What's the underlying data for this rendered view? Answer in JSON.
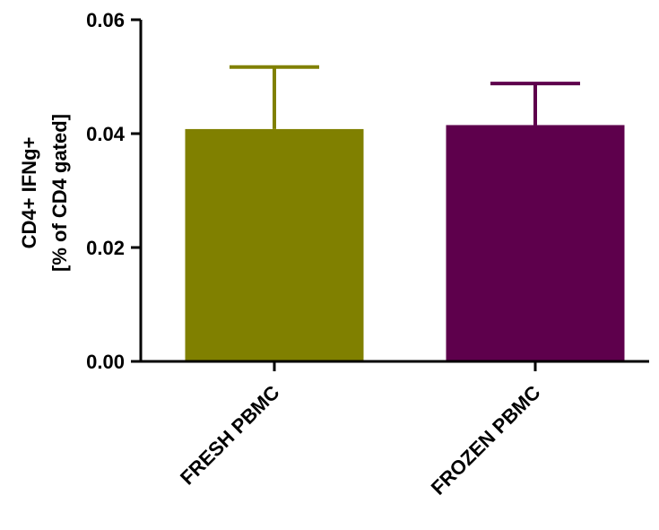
{
  "chart_data": {
    "type": "bar",
    "categories": [
      "FRESH PBMC",
      "FROZEN PBMC"
    ],
    "values": [
      0.0408,
      0.0415
    ],
    "error_upper": [
      0.0517,
      0.0488
    ],
    "colors": [
      "#808000",
      "#5e004c"
    ],
    "ylabel_lines": [
      "CD4+ IFNg+",
      "[% of CD4 gated]"
    ],
    "ylim": [
      0,
      0.06
    ],
    "yticks": [
      0.0,
      0.02,
      0.04,
      0.06
    ],
    "ytick_labels": [
      "0.00",
      "0.02",
      "0.04",
      "0.06"
    ],
    "grid": false,
    "legend": "none"
  }
}
